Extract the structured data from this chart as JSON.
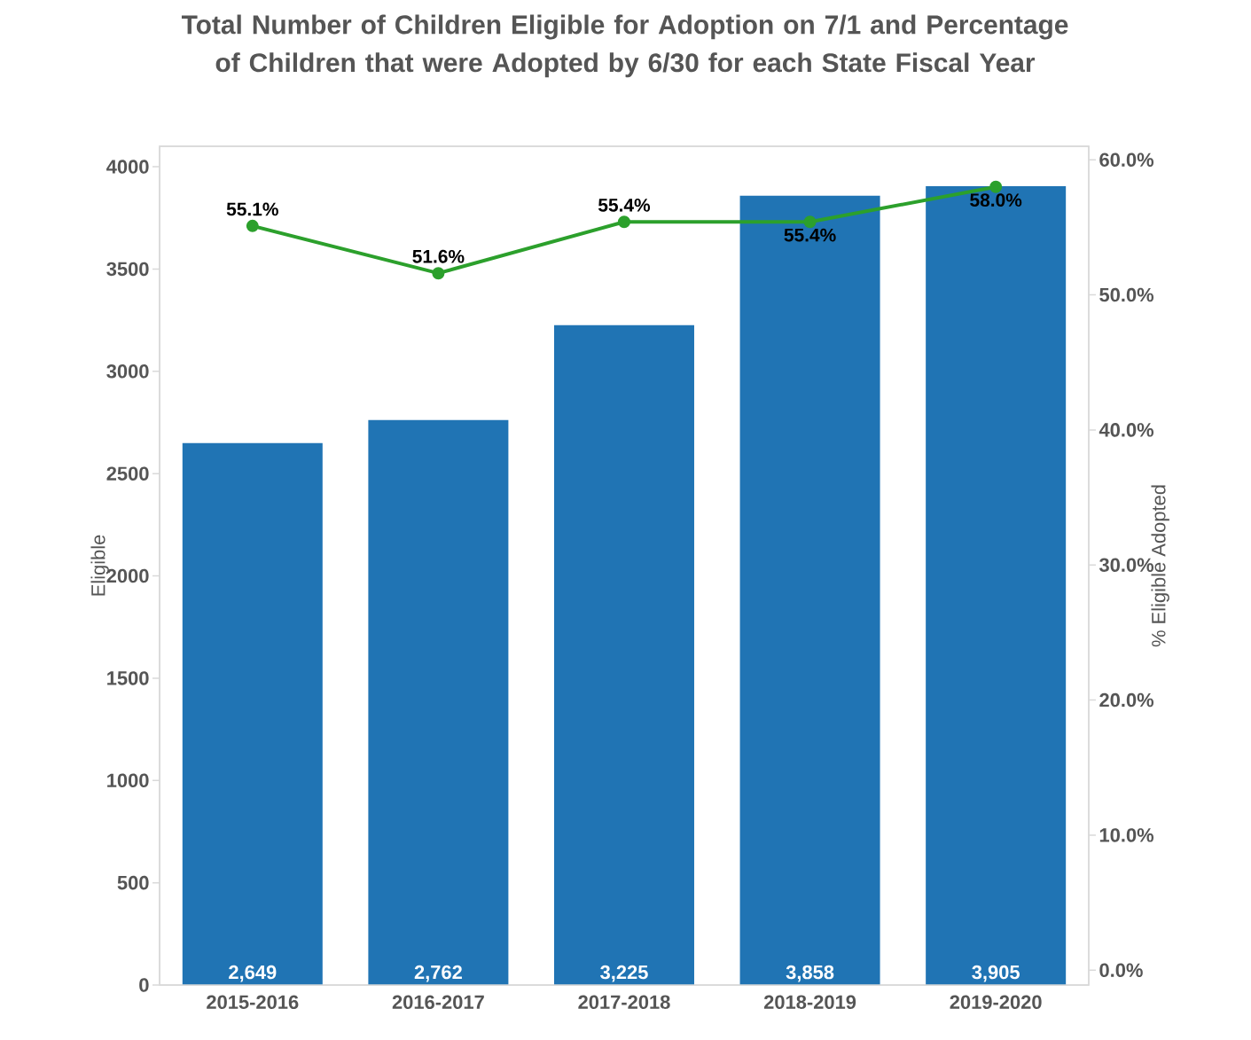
{
  "chart_data": {
    "type": "bar",
    "title": "Total Number of Children Eligible for Adoption on 7/1 and Percentage of Children that were Adopted by 6/30 for each State Fiscal Year",
    "categories": [
      "2015-2016",
      "2016-2017",
      "2017-2018",
      "2018-2019",
      "2019-2020"
    ],
    "series": [
      {
        "color": "#2074b4",
        "values": [
          2649,
          2762,
          3225,
          3858,
          3905
        ],
        "value_labels": [
          "2,649",
          "2,762",
          "3,225",
          "3,858",
          "3,905"
        ]
      },
      {
        "type": "line",
        "axis": "y2",
        "color": "#2ca02c",
        "marker": "circle",
        "values": [
          55.1,
          51.6,
          55.4,
          55.4,
          58.0
        ],
        "value_labels": [
          "55.1%",
          "51.6%",
          "55.4%",
          "55.4%",
          "58.0%"
        ]
      }
    ],
    "ylabel": "Eligible",
    "y2label": "% Eligible Adopted",
    "ylim": [
      0,
      4100
    ],
    "yticks": [
      0,
      500,
      1000,
      1500,
      2000,
      2500,
      3000,
      3500,
      4000
    ],
    "y2lim": [
      -1.1,
      61
    ],
    "y2ticks": [
      {
        "value": 0,
        "label": "0.0%"
      },
      {
        "value": 10,
        "label": "10.0%"
      },
      {
        "value": 20,
        "label": "20.0%"
      },
      {
        "value": 30,
        "label": "30.0%"
      },
      {
        "value": 40,
        "label": "40.0%"
      },
      {
        "value": 50,
        "label": "50.0%"
      },
      {
        "value": 60,
        "label": "60.0%"
      }
    ],
    "grid": false,
    "legend": false
  }
}
